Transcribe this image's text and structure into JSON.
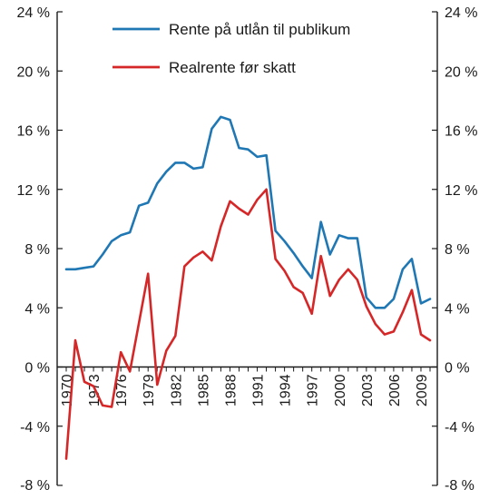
{
  "chart_data": {
    "type": "line",
    "title": "",
    "xlabel": "",
    "ylabel": "",
    "x_range": [
      1970,
      2010
    ],
    "ylim": [
      -8,
      24
    ],
    "y_ticks": [
      -8,
      -4,
      0,
      4,
      8,
      12,
      16,
      20,
      24
    ],
    "y_tick_labels": [
      "-8 %",
      "-4 %",
      "0 %",
      "4 %",
      "8 %",
      "12 %",
      "16 %",
      "20 %",
      "24 %"
    ],
    "x_tick_labels": [
      "1970",
      "1973",
      "1976",
      "1979",
      "1982",
      "1985",
      "1988",
      "1991",
      "1994",
      "1997",
      "2000",
      "2003",
      "2006",
      "2009"
    ],
    "secondary_y_axis": true,
    "grid": false,
    "legend_position": "top-center",
    "series": [
      {
        "name": "Rente på utlån til publikum",
        "color": "#1f77b4",
        "x": [
          1970,
          1971,
          1972,
          1973,
          1974,
          1975,
          1976,
          1977,
          1978,
          1979,
          1980,
          1981,
          1982,
          1983,
          1984,
          1985,
          1986,
          1987,
          1988,
          1989,
          1990,
          1991,
          1992,
          1993,
          1994,
          1995,
          1996,
          1997,
          1998,
          1999,
          2000,
          2001,
          2002,
          2003,
          2004,
          2005,
          2006,
          2007,
          2008,
          2009,
          2010
        ],
        "y": [
          6.6,
          6.6,
          6.7,
          6.8,
          7.6,
          8.5,
          8.9,
          9.1,
          10.9,
          11.1,
          12.4,
          13.2,
          13.8,
          13.8,
          13.4,
          13.5,
          16.1,
          16.9,
          16.7,
          14.8,
          14.7,
          14.2,
          14.3,
          9.2,
          8.5,
          7.7,
          6.8,
          6.0,
          9.8,
          7.6,
          8.9,
          8.7,
          8.7,
          4.7,
          4.0,
          4.0,
          4.6,
          6.6,
          7.3,
          4.3,
          4.6
        ]
      },
      {
        "name": "Realrente før skatt",
        "color": "#d62728",
        "x": [
          1970,
          1971,
          1972,
          1973,
          1974,
          1975,
          1976,
          1977,
          1978,
          1979,
          1980,
          1981,
          1982,
          1983,
          1984,
          1985,
          1986,
          1987,
          1988,
          1989,
          1990,
          1991,
          1992,
          1993,
          1994,
          1995,
          1996,
          1997,
          1998,
          1999,
          2000,
          2001,
          2002,
          2003,
          2004,
          2005,
          2006,
          2007,
          2008,
          2009,
          2010
        ],
        "y": [
          -6.2,
          1.8,
          -1.0,
          -1.3,
          -2.6,
          -2.7,
          1.0,
          -0.3,
          3.0,
          6.3,
          -1.2,
          1.1,
          2.1,
          6.8,
          7.4,
          7.8,
          7.2,
          9.5,
          11.2,
          10.7,
          10.3,
          11.3,
          12.0,
          7.3,
          6.5,
          5.4,
          5.0,
          3.6,
          7.5,
          4.8,
          5.9,
          6.6,
          5.9,
          4.1,
          2.9,
          2.2,
          2.4,
          3.7,
          5.2,
          2.2,
          1.8
        ]
      }
    ]
  }
}
